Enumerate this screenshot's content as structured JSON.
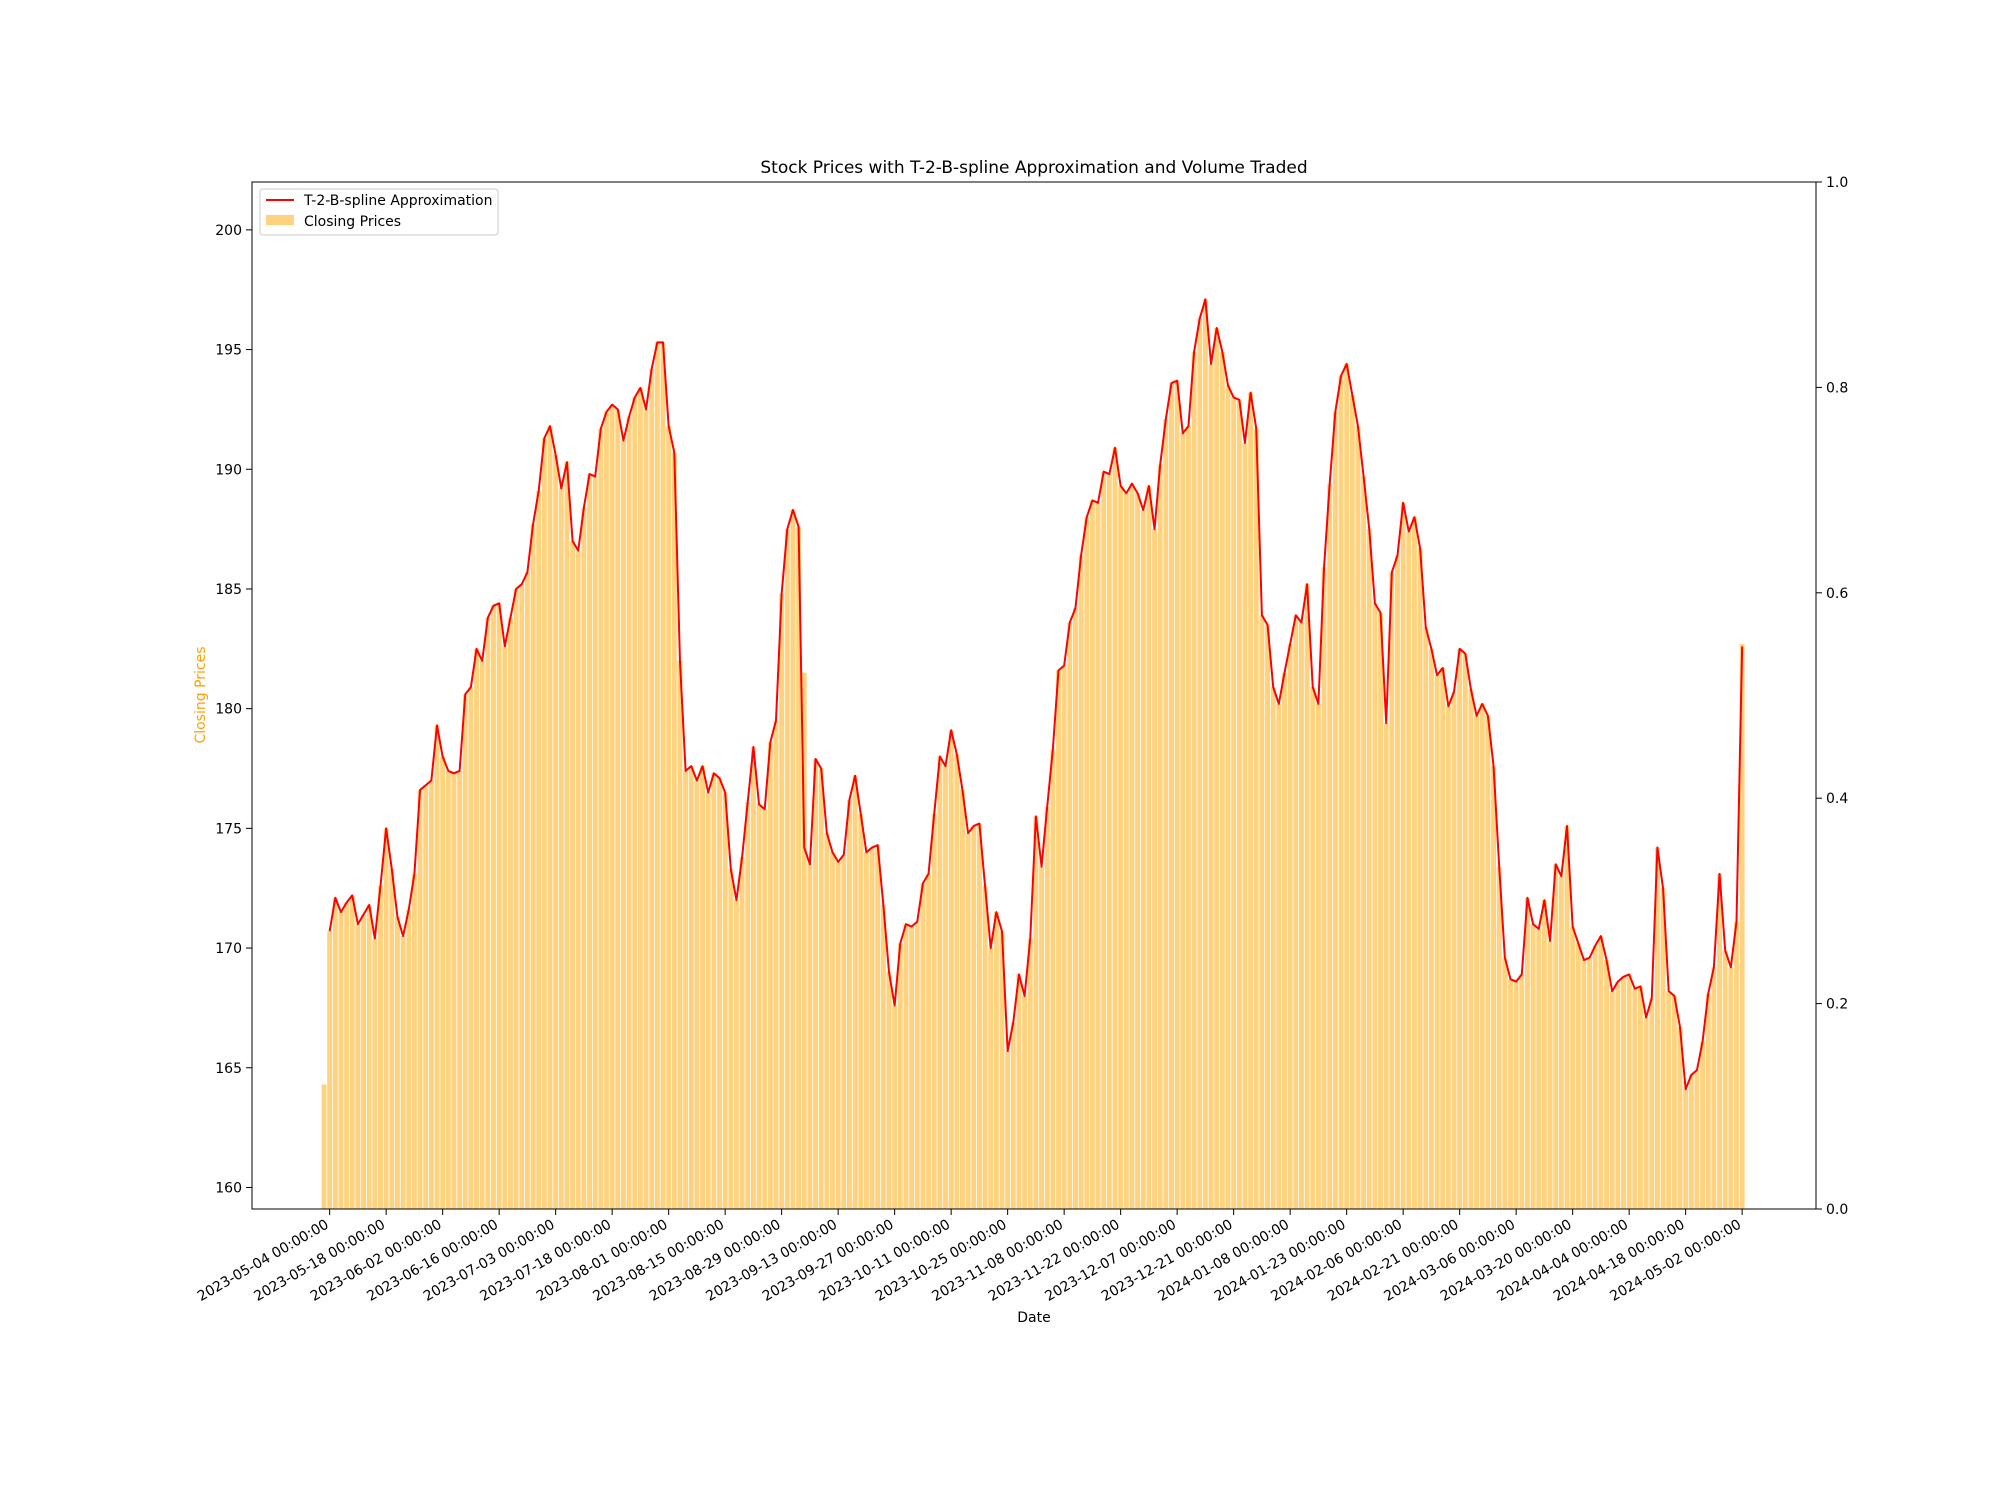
{
  "chart_data": {
    "type": "bar",
    "title": "Stock Prices with T-2-B-spline Approximation and Volume Traded",
    "xlabel": "Date",
    "ylabel": "Closing Prices",
    "ylabel_color": "#ff9f00",
    "y_ticks": [
      "160",
      "165",
      "170",
      "175",
      "180",
      "185",
      "190",
      "195",
      "200"
    ],
    "ylim": [
      159.1,
      202.0
    ],
    "right_ticks": [
      "0.0",
      "0.2",
      "0.4",
      "0.6",
      "0.8",
      "1.0"
    ],
    "right_ylim": [
      0.0,
      1.0
    ],
    "x_ticks": [
      "2023-05-04 00:00:00",
      "2023-05-18 00:00:00",
      "2023-06-02 00:00:00",
      "2023-06-16 00:00:00",
      "2023-07-03 00:00:00",
      "2023-07-18 00:00:00",
      "2023-08-01 00:00:00",
      "2023-08-15 00:00:00",
      "2023-08-29 00:00:00",
      "2023-09-13 00:00:00",
      "2023-09-27 00:00:00",
      "2023-10-11 00:00:00",
      "2023-10-25 00:00:00",
      "2023-11-08 00:00:00",
      "2023-11-22 00:00:00",
      "2023-12-07 00:00:00",
      "2023-12-21 00:00:00",
      "2024-01-08 00:00:00",
      "2024-01-23 00:00:00",
      "2024-02-06 00:00:00",
      "2024-02-21 00:00:00",
      "2024-03-06 00:00:00",
      "2024-03-20 00:00:00",
      "2024-04-04 00:00:00",
      "2024-04-18 00:00:00",
      "2024-05-02 00:00:00"
    ],
    "x_tick_index": [
      1,
      11,
      21,
      31,
      41,
      51,
      61,
      71,
      81,
      91,
      101,
      111,
      121,
      131,
      141,
      151,
      161,
      171,
      181,
      191,
      201,
      211,
      221,
      231,
      241,
      251
    ],
    "grid": false,
    "legend_position": "top-left",
    "series": [
      {
        "name": "T-2-B-spline Approximation",
        "type": "line",
        "color": "#ff0000",
        "start_index": 2,
        "values": [
          170.7,
          172.1,
          171.5,
          171.9,
          172.2,
          171.0,
          171.4,
          171.8,
          170.4,
          172.6,
          175.0,
          173.3,
          171.3,
          170.5,
          171.6,
          173.1,
          176.6,
          176.8,
          177.0,
          179.3,
          178.0,
          177.4,
          177.3,
          177.4,
          180.6,
          180.9,
          182.5,
          182.0,
          183.8,
          184.3,
          184.4,
          182.6,
          183.8,
          185.0,
          185.2,
          185.7,
          187.7,
          189.1,
          191.3,
          191.8,
          190.6,
          189.2,
          190.3,
          187.0,
          186.6,
          188.4,
          189.8,
          189.7,
          191.7,
          192.4,
          192.7,
          192.5,
          191.2,
          192.2,
          193.0,
          193.4,
          192.5,
          194.2,
          195.3,
          195.3,
          191.8,
          190.7,
          182.0,
          177.4,
          177.6,
          177.0,
          177.6,
          176.5,
          177.3,
          177.1,
          176.5,
          173.3,
          172.0,
          173.8,
          176.1,
          178.4,
          176.0,
          175.8,
          178.6,
          179.5,
          184.8,
          187.5,
          188.3,
          187.6,
          174.2,
          173.5,
          177.9,
          177.5,
          174.8,
          174.0,
          173.6,
          173.9,
          176.2,
          177.2,
          175.6,
          174.0,
          174.2,
          174.3,
          171.8,
          169.0,
          167.6,
          170.2,
          171.0,
          170.9,
          171.1,
          172.7,
          173.1,
          175.6,
          178.0,
          177.6,
          179.1,
          178.1,
          176.6,
          174.8,
          175.1,
          175.2,
          172.6,
          170.0,
          171.5,
          170.7,
          165.7,
          166.9,
          168.9,
          168.0,
          170.4,
          175.5,
          173.4,
          175.9,
          178.3,
          181.6,
          181.8,
          183.6,
          184.2,
          186.4,
          188.0,
          188.7,
          188.6,
          189.9,
          189.8,
          190.9,
          189.3,
          189.0,
          189.4,
          189.0,
          188.3,
          189.3,
          187.5,
          190.2,
          192.1,
          193.6,
          193.7,
          191.5,
          191.8,
          194.9,
          196.3,
          197.1,
          194.4,
          195.9,
          194.9,
          193.5,
          193.0,
          192.9,
          191.1,
          193.2,
          191.7,
          183.9,
          183.5,
          180.9,
          180.2,
          181.5,
          182.7,
          183.9,
          183.6,
          185.2,
          180.9,
          180.2,
          185.9,
          189.4,
          192.4,
          193.9,
          194.4,
          193.1,
          191.8,
          189.7,
          187.5,
          184.4,
          184.0,
          179.4,
          185.7,
          186.4,
          188.6,
          187.4,
          188.0,
          186.7,
          183.4,
          182.5,
          181.4,
          181.7,
          180.1,
          180.7,
          182.5,
          182.3,
          180.8,
          179.7,
          180.2,
          179.7,
          177.6,
          173.4,
          169.6,
          168.7,
          168.6,
          168.9,
          172.1,
          171.0,
          170.8,
          172.0,
          170.3,
          173.5,
          173.0,
          175.1,
          170.9,
          170.2,
          169.5,
          169.6,
          170.1,
          170.5,
          169.5,
          168.2,
          168.6,
          168.8,
          168.9,
          168.3,
          168.4,
          167.1,
          167.9,
          174.2,
          172.5,
          168.2,
          168.0,
          166.7,
          164.1,
          164.7,
          164.9,
          166.1,
          168.1,
          169.2,
          173.1,
          169.9,
          169.2,
          171.1,
          182.6
        ]
      },
      {
        "name": "Closing Prices",
        "type": "bar",
        "color": "#ffa500",
        "opacity": 0.5,
        "values": [
          164.3,
          170.7,
          172.1,
          171.5,
          171.9,
          172.2,
          171.0,
          171.4,
          171.8,
          170.4,
          172.6,
          175.0,
          173.3,
          171.3,
          170.5,
          171.6,
          173.1,
          176.6,
          176.8,
          177.0,
          179.3,
          178.0,
          177.4,
          177.3,
          177.4,
          180.6,
          180.9,
          182.5,
          182.0,
          183.8,
          184.3,
          184.4,
          182.6,
          183.8,
          185.0,
          185.2,
          185.7,
          187.7,
          189.1,
          191.3,
          191.8,
          190.6,
          189.2,
          190.3,
          187.0,
          186.6,
          188.4,
          189.8,
          189.7,
          191.7,
          192.4,
          192.7,
          192.5,
          191.2,
          192.2,
          193.0,
          193.4,
          192.5,
          194.2,
          195.3,
          195.3,
          191.8,
          190.7,
          182.0,
          177.4,
          177.6,
          177.0,
          177.6,
          176.5,
          177.3,
          177.1,
          176.5,
          173.3,
          172.0,
          173.8,
          176.1,
          178.4,
          176.0,
          175.8,
          178.6,
          179.5,
          184.8,
          187.5,
          188.3,
          187.6,
          181.5,
          173.5,
          177.9,
          177.5,
          174.8,
          174.0,
          173.6,
          173.9,
          176.2,
          177.2,
          175.6,
          174.0,
          174.2,
          174.3,
          171.8,
          169.0,
          167.6,
          170.2,
          171.0,
          170.9,
          171.1,
          172.7,
          173.1,
          175.6,
          178.0,
          177.6,
          179.1,
          178.1,
          176.6,
          174.8,
          175.1,
          175.2,
          172.6,
          170.0,
          171.5,
          170.7,
          165.7,
          166.9,
          168.9,
          168.0,
          170.4,
          175.5,
          173.4,
          175.9,
          178.3,
          181.6,
          181.8,
          183.6,
          184.2,
          186.4,
          188.0,
          188.7,
          188.6,
          189.9,
          189.8,
          190.9,
          189.3,
          189.0,
          189.4,
          189.0,
          188.3,
          189.3,
          187.5,
          190.2,
          192.1,
          193.6,
          193.7,
          191.5,
          191.8,
          194.9,
          196.3,
          197.1,
          194.4,
          195.9,
          194.9,
          193.5,
          193.0,
          192.9,
          191.1,
          193.2,
          191.7,
          183.9,
          183.5,
          180.9,
          180.2,
          181.5,
          182.7,
          183.9,
          183.6,
          185.2,
          180.9,
          180.2,
          185.9,
          189.4,
          192.4,
          193.9,
          194.4,
          193.1,
          191.8,
          189.7,
          187.5,
          184.4,
          184.0,
          179.4,
          185.7,
          186.4,
          188.6,
          187.4,
          188.0,
          186.7,
          183.4,
          182.5,
          181.4,
          181.7,
          180.1,
          180.7,
          182.5,
          182.3,
          180.8,
          179.7,
          180.2,
          179.7,
          177.6,
          173.4,
          169.6,
          168.7,
          168.6,
          168.9,
          172.1,
          171.0,
          170.8,
          172.0,
          170.3,
          173.5,
          173.0,
          175.1,
          170.9,
          170.2,
          169.5,
          169.6,
          170.1,
          170.5,
          169.5,
          168.2,
          168.6,
          168.8,
          168.9,
          168.3,
          168.4,
          167.1,
          167.9,
          174.2,
          172.5,
          168.2,
          168.0,
          166.7,
          164.1,
          164.7,
          164.9,
          166.1,
          168.1,
          169.2,
          173.1,
          169.9,
          169.2,
          171.1,
          182.7
        ]
      }
    ]
  }
}
